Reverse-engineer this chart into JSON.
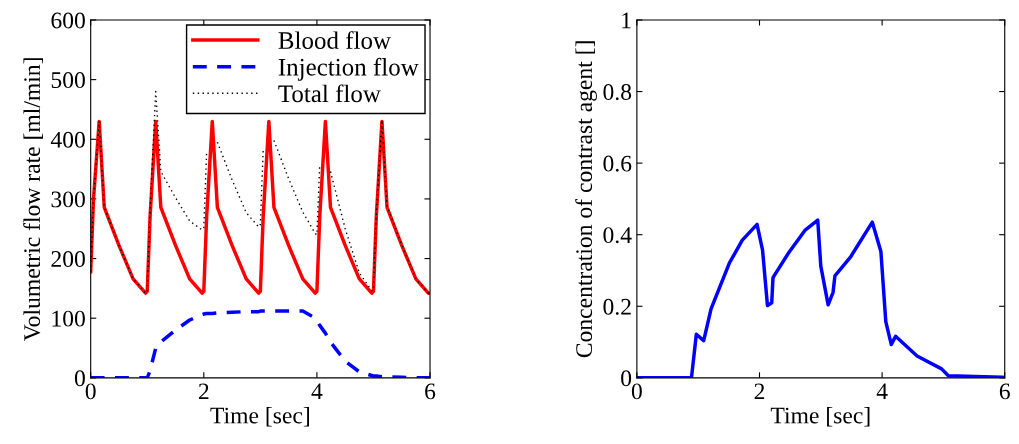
{
  "chart_data": [
    {
      "type": "line",
      "xlabel": "Time [sec]",
      "ylabel": "Volumetric flow rate [ml/min]",
      "xlim": [
        0,
        6
      ],
      "ylim": [
        0,
        600
      ],
      "xticks": [
        0,
        2,
        4,
        6
      ],
      "yticks": [
        0,
        100,
        200,
        300,
        400,
        500,
        600
      ],
      "grid": false,
      "legend": "top right",
      "x": [
        0,
        0.05,
        0.15,
        0.24,
        0.5,
        0.75,
        0.97,
        1,
        1.05,
        1.15,
        1.24,
        1.5,
        1.75,
        1.97,
        2,
        2.05,
        2.15,
        2.24,
        2.5,
        2.75,
        2.97,
        3,
        3.05,
        3.15,
        3.24,
        3.5,
        3.75,
        3.97,
        4,
        4.05,
        4.15,
        4.24,
        4.5,
        4.75,
        4.97,
        5,
        5.05,
        5.15,
        5.24,
        5.5,
        5.75,
        5.97,
        6
      ],
      "series": [
        {
          "name": "Blood flow",
          "color": "#ff0000",
          "line_style": "solid",
          "values": [
            178,
            300,
            430,
            286,
            222,
            166,
            142,
            145,
            270,
            430,
            286,
            222,
            166,
            142,
            145,
            270,
            430,
            286,
            222,
            166,
            142,
            145,
            270,
            430,
            286,
            222,
            166,
            142,
            145,
            270,
            430,
            286,
            222,
            166,
            142,
            145,
            270,
            430,
            286,
            222,
            166,
            142,
            142
          ]
        },
        {
          "name": "Injection flow",
          "color": "#0000ff",
          "line_style": "dashed",
          "values": [
            0,
            0,
            0,
            0,
            0,
            0,
            0,
            0,
            12,
            50,
            60,
            80,
            97,
            106,
            107,
            108,
            108,
            109,
            110,
            111,
            111,
            112,
            112,
            112,
            112,
            112,
            112,
            100,
            95,
            88,
            75,
            60,
            28,
            10,
            4,
            3,
            3,
            2,
            2,
            1,
            0,
            0,
            0
          ]
        },
        {
          "name": "Total flow",
          "color": "#000000",
          "line_style": "dotted",
          "values": [
            178,
            300,
            430,
            286,
            222,
            166,
            142,
            145,
            282,
            480,
            346,
            302,
            263,
            248,
            252,
            378,
            null,
            395,
            332,
            277,
            253,
            257,
            382,
            null,
            398,
            334,
            278,
            242,
            240,
            358,
            null,
            346,
            250,
            176,
            146,
            148,
            273,
            432,
            288,
            223,
            166,
            142,
            142
          ]
        }
      ]
    },
    {
      "type": "line",
      "xlabel": "Time [sec]",
      "ylabel": "Concentration of contrast agent []",
      "xlim": [
        0,
        6
      ],
      "ylim": [
        0,
        1
      ],
      "xticks": [
        0,
        2,
        4,
        6
      ],
      "yticks": [
        0,
        0.2,
        0.4,
        0.6,
        0.8,
        1
      ],
      "grid": false,
      "x": [
        0,
        0.89,
        0.97,
        1.09,
        1.21,
        1.51,
        1.72,
        1.96,
        2.05,
        2.13,
        2.2,
        2.22,
        2.47,
        2.74,
        2.95,
        3.0,
        3.12,
        3.2,
        3.23,
        3.49,
        3.84,
        3.98,
        4.06,
        4.15,
        4.22,
        4.57,
        4.97,
        5.08,
        5.96,
        6
      ],
      "series": [
        {
          "color": "#0000ff",
          "line_style": "solid",
          "values": [
            0,
            0,
            0.122,
            0.104,
            0.193,
            0.321,
            0.385,
            0.429,
            0.357,
            0.202,
            0.21,
            0.28,
            0.348,
            0.412,
            0.441,
            0.312,
            0.204,
            0.239,
            0.285,
            0.339,
            0.435,
            0.353,
            0.157,
            0.093,
            0.116,
            0.061,
            0.025,
            0.006,
            0.002,
            0.001
          ]
        }
      ]
    }
  ]
}
